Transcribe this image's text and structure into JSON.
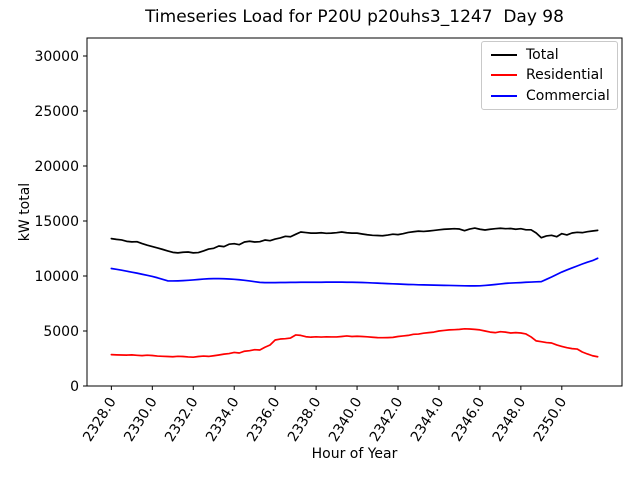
{
  "chart_data": {
    "type": "line",
    "title": "Timeseries Load for P20U p20uhs3_1247  Day 98",
    "xlabel": "Hour of Year",
    "ylabel": "kW total",
    "xlim": [
      2326.81,
      2352.94
    ],
    "ylim": [
      0,
      31636
    ],
    "grid": false,
    "xticks": [
      2328,
      2330,
      2332,
      2334,
      2336,
      2338,
      2340,
      2342,
      2344,
      2346,
      2348,
      2350
    ],
    "xtick_labels": [
      "2328.0",
      "2330.0",
      "2332.0",
      "2334.0",
      "2336.0",
      "2338.0",
      "2340.0",
      "2342.0",
      "2344.0",
      "2346.0",
      "2348.0",
      "2350.0"
    ],
    "yticks": [
      0,
      5000,
      10000,
      15000,
      20000,
      25000,
      30000
    ],
    "ytick_labels": [
      "0",
      "5000",
      "10000",
      "15000",
      "20000",
      "25000",
      "30000"
    ],
    "legend": {
      "position": "upper right"
    },
    "x_start": 2328.0,
    "x_step": 0.25,
    "n_points": 96,
    "series": [
      {
        "name": "Total",
        "color": "#000000",
        "values": [
          13400,
          13330,
          13280,
          13150,
          13100,
          13120,
          12950,
          12800,
          12680,
          12550,
          12420,
          12280,
          12150,
          12100,
          12160,
          12180,
          12100,
          12130,
          12280,
          12450,
          12520,
          12730,
          12670,
          12890,
          12940,
          12850,
          13090,
          13160,
          13090,
          13120,
          13270,
          13210,
          13360,
          13460,
          13610,
          13570,
          13790,
          14000,
          13950,
          13900,
          13900,
          13930,
          13880,
          13900,
          13940,
          14000,
          13930,
          13900,
          13900,
          13820,
          13750,
          13700,
          13680,
          13660,
          13720,
          13800,
          13760,
          13850,
          13960,
          14020,
          14080,
          14050,
          14090,
          14140,
          14200,
          14250,
          14270,
          14300,
          14270,
          14120,
          14270,
          14360,
          14250,
          14180,
          14250,
          14300,
          14340,
          14300,
          14320,
          14250,
          14300,
          14200,
          14200,
          13910,
          13480,
          13640,
          13700,
          13570,
          13850,
          13730,
          13910,
          13970,
          13940,
          14030,
          14090,
          14150
        ]
      },
      {
        "name": "Residential",
        "color": "#ff0000",
        "values": [
          2850,
          2830,
          2820,
          2810,
          2830,
          2790,
          2760,
          2800,
          2770,
          2720,
          2700,
          2680,
          2660,
          2700,
          2680,
          2640,
          2620,
          2680,
          2720,
          2690,
          2750,
          2820,
          2900,
          2950,
          3050,
          3000,
          3160,
          3210,
          3300,
          3270,
          3520,
          3730,
          4180,
          4270,
          4300,
          4360,
          4640,
          4600,
          4480,
          4440,
          4470,
          4450,
          4470,
          4460,
          4460,
          4500,
          4550,
          4500,
          4520,
          4500,
          4470,
          4430,
          4400,
          4390,
          4400,
          4420,
          4500,
          4550,
          4600,
          4700,
          4720,
          4800,
          4850,
          4900,
          5000,
          5050,
          5100,
          5120,
          5150,
          5200,
          5180,
          5150,
          5100,
          5000,
          4900,
          4850,
          4940,
          4900,
          4820,
          4850,
          4820,
          4730,
          4460,
          4100,
          4030,
          3950,
          3910,
          3730,
          3600,
          3480,
          3400,
          3360,
          3090,
          2910,
          2750,
          2660
        ]
      },
      {
        "name": "Commercial",
        "color": "#0000ff",
        "values": [
          10680,
          10610,
          10530,
          10440,
          10350,
          10260,
          10160,
          10060,
          9960,
          9840,
          9700,
          9560,
          9550,
          9560,
          9580,
          9610,
          9640,
          9680,
          9720,
          9750,
          9760,
          9760,
          9750,
          9730,
          9700,
          9660,
          9610,
          9550,
          9480,
          9420,
          9400,
          9400,
          9400,
          9410,
          9410,
          9420,
          9420,
          9430,
          9430,
          9430,
          9430,
          9430,
          9440,
          9440,
          9440,
          9440,
          9430,
          9430,
          9420,
          9410,
          9390,
          9370,
          9350,
          9330,
          9310,
          9290,
          9270,
          9250,
          9230,
          9220,
          9200,
          9190,
          9180,
          9170,
          9160,
          9150,
          9140,
          9130,
          9120,
          9110,
          9100,
          9100,
          9110,
          9140,
          9180,
          9230,
          9280,
          9330,
          9360,
          9380,
          9400,
          9430,
          9450,
          9470,
          9490,
          9700,
          9910,
          10140,
          10360,
          10550,
          10730,
          10910,
          11090,
          11260,
          11400,
          11610
        ]
      }
    ]
  }
}
